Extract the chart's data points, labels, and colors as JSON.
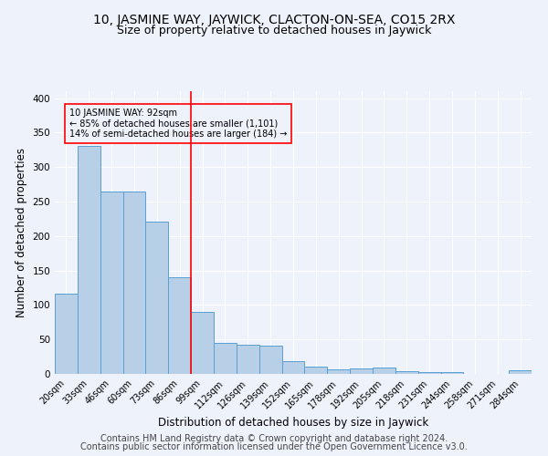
{
  "title": "10, JASMINE WAY, JAYWICK, CLACTON-ON-SEA, CO15 2RX",
  "subtitle": "Size of property relative to detached houses in Jaywick",
  "xlabel": "Distribution of detached houses by size in Jaywick",
  "ylabel": "Number of detached properties",
  "footer1": "Contains HM Land Registry data © Crown copyright and database right 2024.",
  "footer2": "Contains public sector information licensed under the Open Government Licence v3.0.",
  "categories": [
    "20sqm",
    "33sqm",
    "46sqm",
    "60sqm",
    "73sqm",
    "86sqm",
    "99sqm",
    "112sqm",
    "126sqm",
    "139sqm",
    "152sqm",
    "165sqm",
    "178sqm",
    "192sqm",
    "205sqm",
    "218sqm",
    "231sqm",
    "244sqm",
    "258sqm",
    "271sqm",
    "284sqm"
  ],
  "values": [
    116,
    330,
    265,
    265,
    221,
    140,
    90,
    45,
    42,
    41,
    19,
    10,
    7,
    8,
    9,
    4,
    3,
    3,
    0,
    0,
    5
  ],
  "bar_color": "#b8cfe8",
  "bar_edge_color": "#5a9fd4",
  "red_line_index": 6,
  "annotation_text": "10 JASMINE WAY: 92sqm\n← 85% of detached houses are smaller (1,101)\n14% of semi-detached houses are larger (184) →",
  "ylim": [
    0,
    410
  ],
  "yticks": [
    0,
    50,
    100,
    150,
    200,
    250,
    300,
    350,
    400
  ],
  "background_color": "#eef2fb",
  "grid_color": "#ffffff",
  "title_fontsize": 10,
  "subtitle_fontsize": 9,
  "label_fontsize": 8.5,
  "tick_fontsize": 7.5,
  "footer_fontsize": 7
}
